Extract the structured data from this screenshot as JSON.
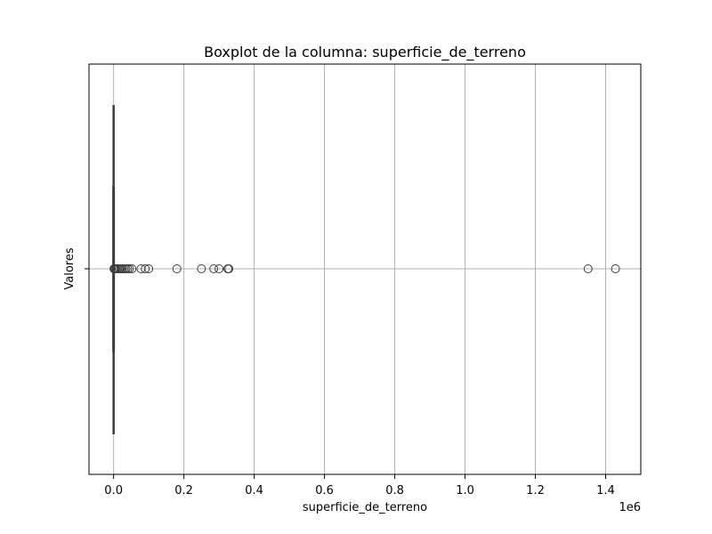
{
  "chart_data": {
    "type": "boxplot",
    "orientation": "horizontal",
    "title": "Boxplot de la columna: superficie_de_terreno",
    "xlabel": "superficie_de_terreno",
    "ylabel": "Valores",
    "x_offset_label": "1e6",
    "xlim": [
      -70000,
      1500000
    ],
    "x_ticks": [
      0,
      200000,
      400000,
      600000,
      800000,
      1000000,
      1200000,
      1400000
    ],
    "x_tick_labels": [
      "0.0",
      "0.2",
      "0.4",
      "0.6",
      "0.8",
      "1.0",
      "1.2",
      "1.4"
    ],
    "grid": true,
    "box": {
      "q1": 0,
      "median": 0,
      "q3": 0,
      "whisker_low": 0,
      "whisker_high": 0
    },
    "outliers": [
      1000,
      3000,
      5000,
      8000,
      12000,
      16000,
      20000,
      25000,
      30000,
      35000,
      40000,
      45000,
      52000,
      78000,
      90000,
      100000,
      180000,
      250000,
      285000,
      300000,
      325000,
      328000,
      1350000,
      1428000
    ],
    "colors": {
      "box": "#3a5f8a",
      "line": "#3d3d3d",
      "grid": "#b0b0b0"
    }
  }
}
